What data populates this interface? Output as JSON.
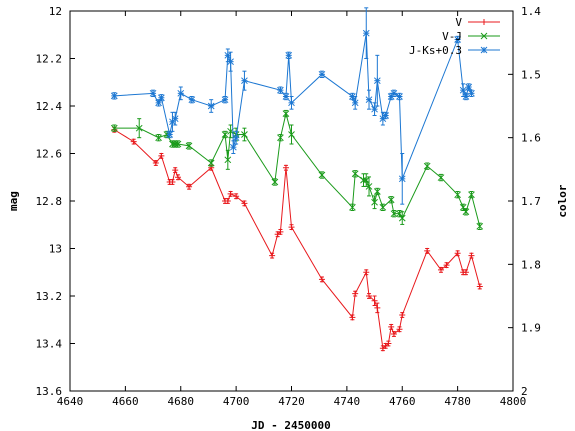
{
  "chart_data": {
    "type": "scatter",
    "xlabel": "JD - 2450000",
    "ylabel_left": "mag",
    "ylabel_right": "color",
    "xlim": [
      4640,
      4800
    ],
    "ylim_left": [
      13.6,
      12.0
    ],
    "ylim_right": [
      2.0,
      1.4
    ],
    "x_ticks": [
      4640,
      4660,
      4680,
      4700,
      4720,
      4740,
      4760,
      4780,
      4800
    ],
    "y_left_ticks": [
      12,
      12.2,
      12.4,
      12.6,
      12.8,
      13,
      13.2,
      13.4,
      13.6
    ],
    "y_right_ticks": [
      1.4,
      1.5,
      1.6,
      1.7,
      1.8,
      1.9,
      2
    ],
    "legend_position": "top-right",
    "series": [
      {
        "name": "V",
        "axis": "left",
        "color": "#e8181c",
        "marker": "plus",
        "points": [
          [
            4656,
            12.5,
            0.01
          ],
          [
            4663,
            12.55,
            0.01
          ],
          [
            4671,
            12.64,
            0.01
          ],
          [
            4673,
            12.61,
            0.01
          ],
          [
            4676,
            12.72,
            0.01
          ],
          [
            4677,
            12.72,
            0.01
          ],
          [
            4678,
            12.67,
            0.01
          ],
          [
            4679,
            12.7,
            0.01
          ],
          [
            4683,
            12.74,
            0.01
          ],
          [
            4691,
            12.66,
            0.01
          ],
          [
            4696,
            12.8,
            0.01
          ],
          [
            4697,
            12.8,
            0.01
          ],
          [
            4698,
            12.77,
            0.01
          ],
          [
            4700,
            12.78,
            0.01
          ],
          [
            4703,
            12.81,
            0.01
          ],
          [
            4713,
            13.03,
            0.01
          ],
          [
            4715,
            12.94,
            0.01
          ],
          [
            4716,
            12.93,
            0.01
          ],
          [
            4718,
            12.66,
            0.01
          ],
          [
            4720,
            12.91,
            0.01
          ],
          [
            4731,
            13.13,
            0.01
          ],
          [
            4742,
            13.29,
            0.01
          ],
          [
            4743,
            13.19,
            0.01
          ],
          [
            4747,
            13.1,
            0.01
          ],
          [
            4748,
            13.2,
            0.01
          ],
          [
            4750,
            13.22,
            0.02
          ],
          [
            4751,
            13.25,
            0.02
          ],
          [
            4753,
            13.42,
            0.01
          ],
          [
            4754,
            13.41,
            0.01
          ],
          [
            4755,
            13.4,
            0.01
          ],
          [
            4756,
            13.33,
            0.01
          ],
          [
            4757,
            13.36,
            0.01
          ],
          [
            4759,
            13.34,
            0.01
          ],
          [
            4760,
            13.28,
            0.01
          ],
          [
            4769,
            13.01,
            0.01
          ],
          [
            4774,
            13.09,
            0.01
          ],
          [
            4776,
            13.07,
            0.01
          ],
          [
            4780,
            13.02,
            0.01
          ],
          [
            4782,
            13.1,
            0.01
          ],
          [
            4783,
            13.1,
            0.01
          ],
          [
            4785,
            13.03,
            0.01
          ],
          [
            4788,
            13.16,
            0.01
          ]
        ]
      },
      {
        "name": "V-J",
        "axis": "right",
        "color": "#1a9a1a",
        "marker": "cross",
        "points": [
          [
            4656,
            1.585,
            0.005
          ],
          [
            4665,
            1.585,
            0.015
          ],
          [
            4672,
            1.6,
            0.005
          ],
          [
            4675,
            1.595,
            0.005
          ],
          [
            4677,
            1.61,
            0.005
          ],
          [
            4678,
            1.61,
            0.005
          ],
          [
            4679,
            1.61,
            0.005
          ],
          [
            4683,
            1.613,
            0.005
          ],
          [
            4691,
            1.64,
            0.005
          ],
          [
            4696,
            1.595,
            0.005
          ],
          [
            4697,
            1.635,
            0.015
          ],
          [
            4698,
            1.59,
            0.01
          ],
          [
            4700,
            1.595,
            0.01
          ],
          [
            4703,
            1.595,
            0.01
          ],
          [
            4714,
            1.67,
            0.005
          ],
          [
            4716,
            1.6,
            0.005
          ],
          [
            4718,
            1.562,
            0.005
          ],
          [
            4720,
            1.595,
            0.015
          ],
          [
            4731,
            1.659,
            0.005
          ],
          [
            4742,
            1.71,
            0.005
          ],
          [
            4743,
            1.657,
            0.005
          ],
          [
            4746,
            1.667,
            0.01
          ],
          [
            4747,
            1.667,
            0.01
          ],
          [
            4748,
            1.677,
            0.015
          ],
          [
            4750,
            1.702,
            0.01
          ],
          [
            4751,
            1.685,
            0.005
          ],
          [
            4753,
            1.71,
            0.005
          ],
          [
            4756,
            1.698,
            0.005
          ],
          [
            4757,
            1.72,
            0.005
          ],
          [
            4759,
            1.72,
            0.005
          ],
          [
            4760,
            1.727,
            0.01
          ],
          [
            4769,
            1.645,
            0.005
          ],
          [
            4774,
            1.663,
            0.005
          ],
          [
            4780,
            1.69,
            0.005
          ],
          [
            4782,
            1.71,
            0.005
          ],
          [
            4783,
            1.717,
            0.005
          ],
          [
            4785,
            1.69,
            0.005
          ],
          [
            4788,
            1.74,
            0.005
          ]
        ]
      },
      {
        "name": "J-Ks+0.3",
        "axis": "right",
        "color": "#1c77d2",
        "marker": "star",
        "points": [
          [
            4656,
            1.534,
            0.005
          ],
          [
            4670,
            1.53,
            0.005
          ],
          [
            4672,
            1.545,
            0.005
          ],
          [
            4673,
            1.537,
            0.005
          ],
          [
            4676,
            1.595,
            0.005
          ],
          [
            4677,
            1.575,
            0.015
          ],
          [
            4678,
            1.57,
            0.01
          ],
          [
            4680,
            1.53,
            0.01
          ],
          [
            4684,
            1.54,
            0.005
          ],
          [
            4691,
            1.55,
            0.01
          ],
          [
            4696,
            1.54,
            0.005
          ],
          [
            4697,
            1.47,
            0.01
          ],
          [
            4698,
            1.48,
            0.015
          ],
          [
            4699,
            1.615,
            0.01
          ],
          [
            4700,
            1.6,
            0.01
          ],
          [
            4703,
            1.51,
            0.015
          ],
          [
            4716,
            1.525,
            0.005
          ],
          [
            4718,
            1.535,
            0.005
          ],
          [
            4719,
            1.47,
            0.005
          ],
          [
            4720,
            1.545,
            0.01
          ],
          [
            4731,
            1.5,
            0.005
          ],
          [
            4742,
            1.535,
            0.005
          ],
          [
            4743,
            1.545,
            0.01
          ],
          [
            4747,
            1.435,
            0.04
          ],
          [
            4748,
            1.54,
            0.015
          ],
          [
            4750,
            1.555,
            0.01
          ],
          [
            4751,
            1.51,
            0.04
          ],
          [
            4753,
            1.57,
            0.01
          ],
          [
            4754,
            1.565,
            0.005
          ],
          [
            4756,
            1.535,
            0.005
          ],
          [
            4757,
            1.53,
            0.005
          ],
          [
            4759,
            1.535,
            0.005
          ],
          [
            4760,
            1.665,
            0.04
          ],
          [
            4780,
            1.445,
            0.005
          ],
          [
            4782,
            1.525,
            0.01
          ],
          [
            4783,
            1.535,
            0.005
          ],
          [
            4784,
            1.52,
            0.005
          ],
          [
            4785,
            1.53,
            0.005
          ]
        ]
      }
    ]
  }
}
